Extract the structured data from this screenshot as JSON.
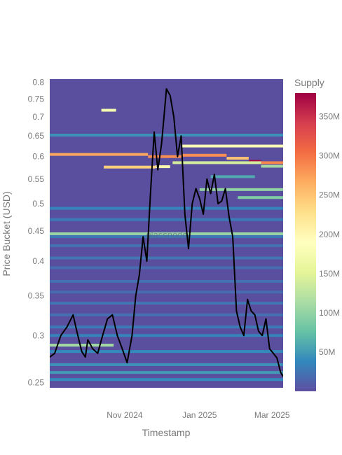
{
  "chart_data": {
    "type": "heatmap",
    "xlabel": "Timestamp",
    "ylabel": "Price Bucket (USD)",
    "watermark": "glassnode",
    "x_ticks": [
      {
        "label": "Nov 2024",
        "date": "2024-11-01"
      },
      {
        "label": "Jan 2025",
        "date": "2025-01-01"
      },
      {
        "label": "Mar 2025",
        "date": "2025-03-01"
      }
    ],
    "x_range": [
      "2024-09-01",
      "2025-03-10"
    ],
    "y_scale": "log",
    "y_range": [
      0.245,
      0.81
    ],
    "y_ticks": [
      0.25,
      0.3,
      0.35,
      0.4,
      0.45,
      0.5,
      0.55,
      0.6,
      0.65,
      0.7,
      0.75,
      0.8
    ],
    "y_tick_labels": [
      "0.25",
      "0.3",
      "0.35",
      "0.4",
      "0.45",
      "0.5",
      "0.55",
      "0.6",
      "0.65",
      "0.7",
      "0.75",
      "0.8"
    ],
    "colorbar": {
      "title": "Supply",
      "range": [
        0,
        380
      ],
      "ticks": [
        50,
        100,
        150,
        200,
        250,
        300,
        350
      ],
      "tick_labels": [
        "50M",
        "100M",
        "150M",
        "200M",
        "250M",
        "300M",
        "350M"
      ],
      "colorscale": "Spectral_r"
    },
    "bands": [
      {
        "price": 0.718,
        "start": "2024-10-13",
        "end": "2024-10-25",
        "value": 175
      },
      {
        "price": 0.652,
        "start": "2024-09-01",
        "end": "2025-03-10",
        "value": 45
      },
      {
        "price": 0.625,
        "start": "2024-12-17",
        "end": "2025-03-10",
        "value": 180
      },
      {
        "price": 0.605,
        "start": "2024-09-01",
        "end": "2024-11-20",
        "value": 270
      },
      {
        "price": 0.6,
        "start": "2024-11-20",
        "end": "2024-12-17",
        "value": 285
      },
      {
        "price": 0.603,
        "start": "2024-12-17",
        "end": "2025-01-23",
        "value": 285
      },
      {
        "price": 0.596,
        "start": "2025-01-23",
        "end": "2025-02-10",
        "value": 250
      },
      {
        "price": 0.589,
        "start": "2025-02-10",
        "end": "2025-02-20",
        "value": 375
      },
      {
        "price": 0.586,
        "start": "2025-02-20",
        "end": "2025-03-10",
        "value": 290
      },
      {
        "price": 0.578,
        "start": "2025-02-20",
        "end": "2025-03-10",
        "value": 110
      },
      {
        "price": 0.586,
        "start": "2024-12-10",
        "end": "2025-02-20",
        "value": 140
      },
      {
        "price": 0.576,
        "start": "2024-10-15",
        "end": "2024-11-26",
        "value": 240
      },
      {
        "price": 0.577,
        "start": "2024-11-26",
        "end": "2024-12-08",
        "value": 200
      },
      {
        "price": 0.555,
        "start": "2025-01-10",
        "end": "2025-02-15",
        "value": 60
      },
      {
        "price": 0.528,
        "start": "2025-01-01",
        "end": "2025-03-10",
        "value": 100
      },
      {
        "price": 0.512,
        "start": "2025-02-01",
        "end": "2025-03-10",
        "value": 90
      },
      {
        "price": 0.491,
        "start": "2024-09-01",
        "end": "2025-03-10",
        "value": 35
      },
      {
        "price": 0.47,
        "start": "2024-09-01",
        "end": "2025-03-10",
        "value": 30
      },
      {
        "price": 0.445,
        "start": "2024-09-01",
        "end": "2025-03-10",
        "value": 105
      },
      {
        "price": 0.44,
        "start": "2024-09-01",
        "end": "2025-03-10",
        "value": 28
      },
      {
        "price": 0.425,
        "start": "2024-09-01",
        "end": "2025-03-10",
        "value": 22
      },
      {
        "price": 0.405,
        "start": "2024-09-01",
        "end": "2025-03-10",
        "value": 25
      },
      {
        "price": 0.39,
        "start": "2024-09-01",
        "end": "2025-03-10",
        "value": 20
      },
      {
        "price": 0.37,
        "start": "2024-09-01",
        "end": "2025-03-10",
        "value": 22
      },
      {
        "price": 0.355,
        "start": "2024-09-01",
        "end": "2025-03-10",
        "value": 20
      },
      {
        "price": 0.34,
        "start": "2024-09-01",
        "end": "2025-03-10",
        "value": 25
      },
      {
        "price": 0.325,
        "start": "2024-09-01",
        "end": "2025-03-10",
        "value": 22
      },
      {
        "price": 0.31,
        "start": "2024-09-01",
        "end": "2025-03-10",
        "value": 30
      },
      {
        "price": 0.3,
        "start": "2024-09-01",
        "end": "2025-03-10",
        "value": 35
      },
      {
        "price": 0.289,
        "start": "2024-09-01",
        "end": "2024-10-23",
        "value": 110
      },
      {
        "price": 0.282,
        "start": "2024-09-01",
        "end": "2025-03-10",
        "value": 40
      },
      {
        "price": 0.268,
        "start": "2024-09-01",
        "end": "2025-03-10",
        "value": 45
      },
      {
        "price": 0.26,
        "start": "2024-09-01",
        "end": "2025-03-10",
        "value": 50
      },
      {
        "price": 0.253,
        "start": "2024-09-01",
        "end": "2025-03-10",
        "value": 40
      }
    ],
    "price_series": {
      "x": [
        "2024-09-01",
        "2024-09-05",
        "2024-09-10",
        "2024-09-15",
        "2024-09-20",
        "2024-09-23",
        "2024-09-27",
        "2024-09-30",
        "2024-10-02",
        "2024-10-06",
        "2024-10-10",
        "2024-10-14",
        "2024-10-18",
        "2024-10-22",
        "2024-10-26",
        "2024-10-30",
        "2024-11-03",
        "2024-11-07",
        "2024-11-10",
        "2024-11-13",
        "2024-11-16",
        "2024-11-19",
        "2024-11-22",
        "2024-11-25",
        "2024-11-28",
        "2024-12-01",
        "2024-12-03",
        "2024-12-05",
        "2024-12-08",
        "2024-12-11",
        "2024-12-14",
        "2024-12-17",
        "2024-12-20",
        "2024-12-23",
        "2024-12-26",
        "2024-12-29",
        "2025-01-01",
        "2025-01-04",
        "2025-01-07",
        "2025-01-10",
        "2025-01-13",
        "2025-01-16",
        "2025-01-19",
        "2025-01-22",
        "2025-01-25",
        "2025-01-28",
        "2025-01-31",
        "2025-02-03",
        "2025-02-06",
        "2025-02-09",
        "2025-02-12",
        "2025-02-15",
        "2025-02-18",
        "2025-02-21",
        "2025-02-24",
        "2025-02-27",
        "2025-03-02",
        "2025-03-05",
        "2025-03-08",
        "2025-03-10"
      ],
      "y": [
        0.276,
        0.28,
        0.3,
        0.31,
        0.325,
        0.305,
        0.282,
        0.276,
        0.295,
        0.285,
        0.28,
        0.3,
        0.32,
        0.325,
        0.3,
        0.285,
        0.27,
        0.3,
        0.35,
        0.38,
        0.44,
        0.4,
        0.52,
        0.66,
        0.57,
        0.63,
        0.7,
        0.78,
        0.76,
        0.7,
        0.6,
        0.65,
        0.48,
        0.42,
        0.5,
        0.53,
        0.51,
        0.48,
        0.55,
        0.52,
        0.56,
        0.5,
        0.505,
        0.53,
        0.475,
        0.44,
        0.33,
        0.31,
        0.3,
        0.345,
        0.33,
        0.325,
        0.305,
        0.3,
        0.32,
        0.285,
        0.28,
        0.275,
        0.26,
        0.256
      ]
    }
  }
}
